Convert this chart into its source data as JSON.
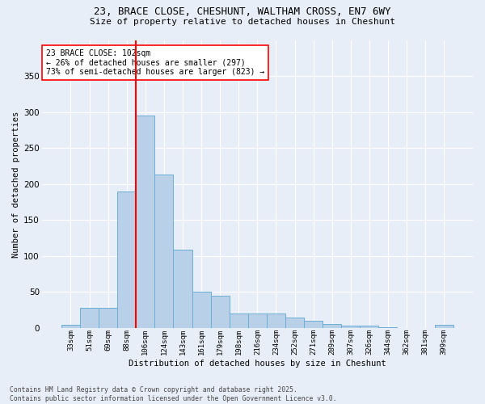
{
  "title_line1": "23, BRACE CLOSE, CHESHUNT, WALTHAM CROSS, EN7 6WY",
  "title_line2": "Size of property relative to detached houses in Cheshunt",
  "xlabel": "Distribution of detached houses by size in Cheshunt",
  "ylabel": "Number of detached properties",
  "bin_labels": [
    "33sqm",
    "51sqm",
    "69sqm",
    "88sqm",
    "106sqm",
    "124sqm",
    "143sqm",
    "161sqm",
    "179sqm",
    "198sqm",
    "216sqm",
    "234sqm",
    "252sqm",
    "271sqm",
    "289sqm",
    "307sqm",
    "326sqm",
    "344sqm",
    "362sqm",
    "381sqm",
    "399sqm"
  ],
  "bar_values": [
    4,
    28,
    28,
    190,
    295,
    213,
    109,
    50,
    45,
    20,
    20,
    20,
    14,
    10,
    5,
    3,
    3,
    1,
    0,
    0,
    4
  ],
  "bar_color": "#b8d0e8",
  "bar_edge_color": "#6baed6",
  "vline_x_index": 4,
  "vline_color": "red",
  "annotation_text": "23 BRACE CLOSE: 102sqm\n← 26% of detached houses are smaller (297)\n73% of semi-detached houses are larger (823) →",
  "annotation_box_color": "white",
  "annotation_box_edge": "red",
  "ylim": [
    0,
    400
  ],
  "yticks": [
    0,
    50,
    100,
    150,
    200,
    250,
    300,
    350
  ],
  "bg_color": "#e8eef8",
  "grid_color": "white",
  "footer_line1": "Contains HM Land Registry data © Crown copyright and database right 2025.",
  "footer_line2": "Contains public sector information licensed under the Open Government Licence v3.0."
}
